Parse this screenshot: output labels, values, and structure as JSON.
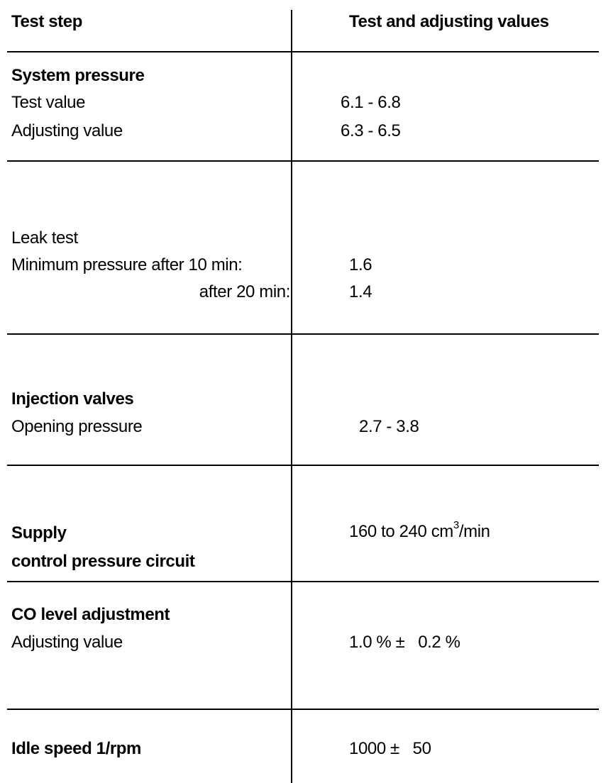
{
  "header": {
    "col1": "Test step",
    "col2": "Test and adjusting values"
  },
  "system_pressure": {
    "title": "System pressure",
    "test_label": "Test value",
    "test_value": "6.1 - 6.8",
    "adjust_label": "Adjusting value",
    "adjust_value": "6.3 - 6.5"
  },
  "leak_test": {
    "title": "Leak test",
    "min_label": "Minimum pressure after 10 min:",
    "min_value": "1.6",
    "after20_label": "after 20 min:",
    "after20_value": "1.4"
  },
  "injection_valves": {
    "title": "Injection valves",
    "opening_label": "Opening pressure",
    "opening_value": "2.7 - 3.8"
  },
  "supply": {
    "title_line1": "Supply",
    "title_line2": "control pressure circuit",
    "value_main": "160 to 240 cm",
    "value_sup": "3",
    "value_unit": "/min"
  },
  "co_level": {
    "title": "CO level adjustment",
    "adjust_label": "Adjusting value",
    "adjust_value": "1.0 % ±   0.2 %"
  },
  "idle_speed": {
    "title": "Idle speed 1/rpm",
    "value": "1000 ±   50"
  }
}
